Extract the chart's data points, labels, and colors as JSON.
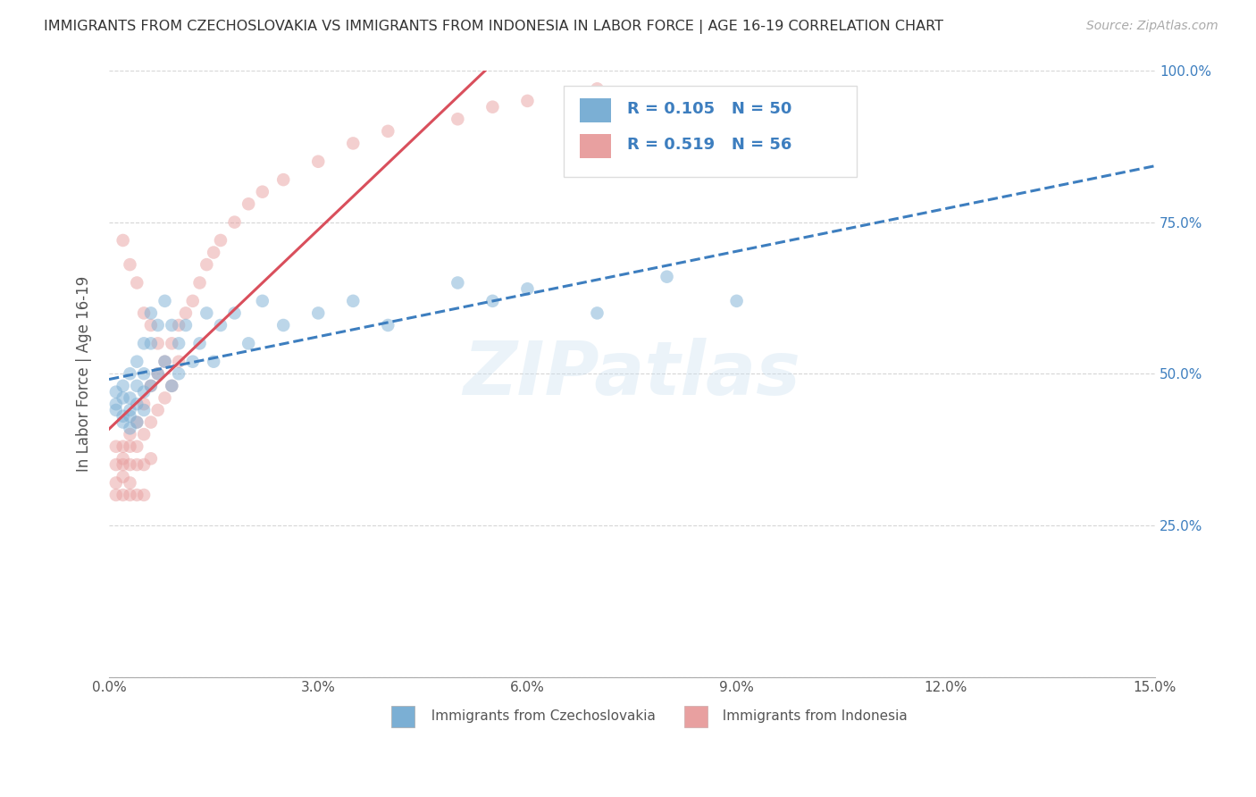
{
  "title": "IMMIGRANTS FROM CZECHOSLOVAKIA VS IMMIGRANTS FROM INDONESIA IN LABOR FORCE | AGE 16-19 CORRELATION CHART",
  "source": "Source: ZipAtlas.com",
  "ylabel": "In Labor Force | Age 16-19",
  "watermark": "ZIPatlas",
  "xlim": [
    0.0,
    0.15
  ],
  "ylim": [
    0.0,
    1.0
  ],
  "xticks": [
    0.0,
    0.03,
    0.06,
    0.09,
    0.12,
    0.15
  ],
  "xticklabels": [
    "0.0%",
    "3.0%",
    "6.0%",
    "9.0%",
    "12.0%",
    "15.0%"
  ],
  "yticks": [
    0.0,
    0.25,
    0.5,
    0.75,
    1.0
  ],
  "yticklabels_right": [
    "",
    "25.0%",
    "50.0%",
    "75.0%",
    "100.0%"
  ],
  "legend_R1": "R = 0.105",
  "legend_N1": "N = 50",
  "legend_R2": "R = 0.519",
  "legend_N2": "N = 56",
  "color_blue": "#7bafd4",
  "color_pink": "#e8a0a0",
  "color_blue_line": "#3d7ebf",
  "color_pink_line": "#d94f5c",
  "color_title": "#333333",
  "background_color": "#ffffff",
  "grid_color": "#cccccc",
  "legend_label1": "Immigrants from Czechoslovakia",
  "legend_label2": "Immigrants from Indonesia",
  "czech_x": [
    0.001,
    0.001,
    0.001,
    0.002,
    0.002,
    0.002,
    0.002,
    0.003,
    0.003,
    0.003,
    0.003,
    0.003,
    0.004,
    0.004,
    0.004,
    0.004,
    0.005,
    0.005,
    0.005,
    0.005,
    0.006,
    0.006,
    0.006,
    0.007,
    0.007,
    0.008,
    0.008,
    0.009,
    0.009,
    0.01,
    0.01,
    0.011,
    0.012,
    0.013,
    0.014,
    0.015,
    0.016,
    0.018,
    0.02,
    0.022,
    0.025,
    0.03,
    0.035,
    0.04,
    0.05,
    0.055,
    0.06,
    0.07,
    0.08,
    0.09
  ],
  "czech_y": [
    0.45,
    0.47,
    0.44,
    0.43,
    0.46,
    0.48,
    0.42,
    0.5,
    0.44,
    0.46,
    0.43,
    0.41,
    0.52,
    0.48,
    0.45,
    0.42,
    0.55,
    0.5,
    0.47,
    0.44,
    0.6,
    0.55,
    0.48,
    0.58,
    0.5,
    0.62,
    0.52,
    0.58,
    0.48,
    0.55,
    0.5,
    0.58,
    0.52,
    0.55,
    0.6,
    0.52,
    0.58,
    0.6,
    0.55,
    0.62,
    0.58,
    0.6,
    0.62,
    0.58,
    0.65,
    0.62,
    0.64,
    0.6,
    0.66,
    0.62
  ],
  "indo_x": [
    0.001,
    0.001,
    0.001,
    0.001,
    0.002,
    0.002,
    0.002,
    0.002,
    0.002,
    0.003,
    0.003,
    0.003,
    0.003,
    0.003,
    0.004,
    0.004,
    0.004,
    0.004,
    0.005,
    0.005,
    0.005,
    0.005,
    0.006,
    0.006,
    0.006,
    0.007,
    0.007,
    0.008,
    0.008,
    0.009,
    0.009,
    0.01,
    0.01,
    0.011,
    0.012,
    0.013,
    0.014,
    0.015,
    0.016,
    0.018,
    0.02,
    0.022,
    0.025,
    0.03,
    0.035,
    0.04,
    0.05,
    0.055,
    0.06,
    0.07,
    0.002,
    0.003,
    0.004,
    0.005,
    0.006,
    0.007
  ],
  "indo_y": [
    0.35,
    0.38,
    0.3,
    0.32,
    0.36,
    0.33,
    0.38,
    0.3,
    0.35,
    0.4,
    0.35,
    0.32,
    0.38,
    0.3,
    0.42,
    0.38,
    0.35,
    0.3,
    0.45,
    0.4,
    0.35,
    0.3,
    0.48,
    0.42,
    0.36,
    0.5,
    0.44,
    0.52,
    0.46,
    0.55,
    0.48,
    0.58,
    0.52,
    0.6,
    0.62,
    0.65,
    0.68,
    0.7,
    0.72,
    0.75,
    0.78,
    0.8,
    0.82,
    0.85,
    0.88,
    0.9,
    0.92,
    0.94,
    0.95,
    0.97,
    0.72,
    0.68,
    0.65,
    0.6,
    0.58,
    0.55
  ],
  "marker_size": 110,
  "marker_alpha": 0.5,
  "line_width": 2.2
}
